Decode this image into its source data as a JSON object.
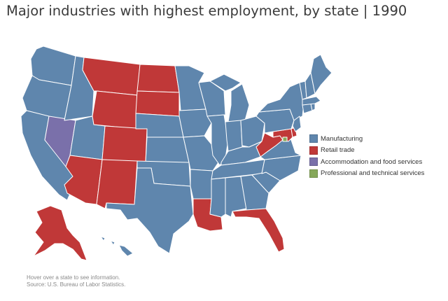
{
  "title": "Major industries with highest employment, by state | 1990",
  "legend": [
    {
      "label": "Manufacturing",
      "color": "#5f86ad"
    },
    {
      "label": "Retail trade",
      "color": "#c03838"
    },
    {
      "label": "Accommodation and food services",
      "color": "#7a70aa"
    },
    {
      "label": "Professional and technical services",
      "color": "#86a85a"
    }
  ],
  "footer": {
    "hover_note": "Hover over a state to see information.",
    "source": "Source: U.S. Bureau of Labor Statistics."
  },
  "industry_colors": {
    "manufacturing": "#5f86ad",
    "retail": "#c03838",
    "accommodation": "#7a70aa",
    "professional": "#86a85a"
  },
  "states": [
    {
      "id": "WA",
      "industry": "manufacturing"
    },
    {
      "id": "OR",
      "industry": "manufacturing"
    },
    {
      "id": "CA",
      "industry": "manufacturing"
    },
    {
      "id": "NV",
      "industry": "accommodation"
    },
    {
      "id": "ID",
      "industry": "manufacturing"
    },
    {
      "id": "UT",
      "industry": "manufacturing"
    },
    {
      "id": "AZ",
      "industry": "retail"
    },
    {
      "id": "MT",
      "industry": "retail"
    },
    {
      "id": "WY",
      "industry": "retail"
    },
    {
      "id": "CO",
      "industry": "retail"
    },
    {
      "id": "NM",
      "industry": "retail"
    },
    {
      "id": "ND",
      "industry": "retail"
    },
    {
      "id": "SD",
      "industry": "retail"
    },
    {
      "id": "NE",
      "industry": "manufacturing"
    },
    {
      "id": "KS",
      "industry": "manufacturing"
    },
    {
      "id": "OK",
      "industry": "manufacturing"
    },
    {
      "id": "TX",
      "industry": "manufacturing"
    },
    {
      "id": "MN",
      "industry": "manufacturing"
    },
    {
      "id": "IA",
      "industry": "manufacturing"
    },
    {
      "id": "MO",
      "industry": "manufacturing"
    },
    {
      "id": "AR",
      "industry": "manufacturing"
    },
    {
      "id": "LA",
      "industry": "retail"
    },
    {
      "id": "WI",
      "industry": "manufacturing"
    },
    {
      "id": "IL",
      "industry": "manufacturing"
    },
    {
      "id": "MI",
      "industry": "manufacturing"
    },
    {
      "id": "IN",
      "industry": "manufacturing"
    },
    {
      "id": "OH",
      "industry": "manufacturing"
    },
    {
      "id": "KY",
      "industry": "manufacturing"
    },
    {
      "id": "TN",
      "industry": "manufacturing"
    },
    {
      "id": "MS",
      "industry": "manufacturing"
    },
    {
      "id": "AL",
      "industry": "manufacturing"
    },
    {
      "id": "GA",
      "industry": "manufacturing"
    },
    {
      "id": "FL",
      "industry": "retail"
    },
    {
      "id": "SC",
      "industry": "manufacturing"
    },
    {
      "id": "NC",
      "industry": "manufacturing"
    },
    {
      "id": "VA",
      "industry": "manufacturing"
    },
    {
      "id": "WV",
      "industry": "retail"
    },
    {
      "id": "MD",
      "industry": "retail"
    },
    {
      "id": "DE",
      "industry": "retail"
    },
    {
      "id": "DC",
      "industry": "professional"
    },
    {
      "id": "PA",
      "industry": "manufacturing"
    },
    {
      "id": "NY",
      "industry": "manufacturing"
    },
    {
      "id": "NJ",
      "industry": "manufacturing"
    },
    {
      "id": "CT",
      "industry": "manufacturing"
    },
    {
      "id": "RI",
      "industry": "manufacturing"
    },
    {
      "id": "MA",
      "industry": "manufacturing"
    },
    {
      "id": "VT",
      "industry": "manufacturing"
    },
    {
      "id": "NH",
      "industry": "manufacturing"
    },
    {
      "id": "ME",
      "industry": "manufacturing"
    },
    {
      "id": "AK",
      "industry": "retail"
    },
    {
      "id": "HI",
      "industry": "manufacturing"
    }
  ]
}
